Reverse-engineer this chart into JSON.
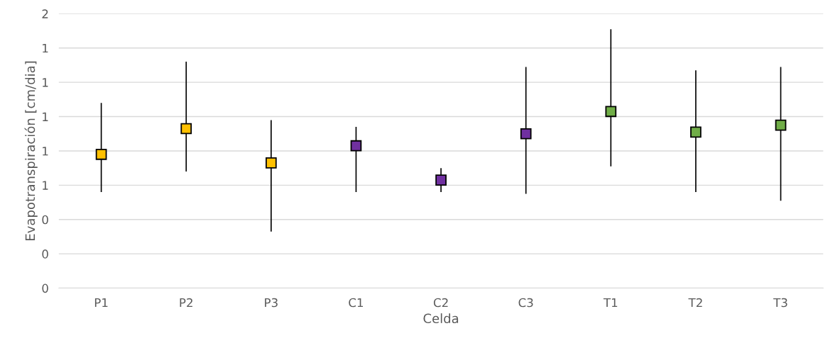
{
  "chart_data": {
    "type": "scatter",
    "xlabel": "Celda",
    "ylabel": "Evapotranspiración [cm/dia]",
    "categories": [
      "P1",
      "P2",
      "P3",
      "C1",
      "C2",
      "C3",
      "T1",
      "T2",
      "T3"
    ],
    "values": [
      0.78,
      0.93,
      0.73,
      0.83,
      0.63,
      0.9,
      1.03,
      0.91,
      0.95
    ],
    "errors": [
      [
        0.56,
        1.08
      ],
      [
        0.68,
        1.32
      ],
      [
        0.33,
        0.98
      ],
      [
        0.56,
        0.94
      ],
      [
        0.56,
        0.7
      ],
      [
        0.55,
        1.29
      ],
      [
        0.71,
        1.51
      ],
      [
        0.56,
        1.27
      ],
      [
        0.51,
        1.29
      ]
    ],
    "colors": [
      "#ffc000",
      "#ffc000",
      "#ffc000",
      "#7030a0",
      "#7030a0",
      "#7030a0",
      "#70ad47",
      "#70ad47",
      "#70ad47"
    ],
    "marker": "square",
    "ylim": [
      0,
      1.6
    ],
    "yticks": [
      {
        "value": 0,
        "label": "0"
      },
      {
        "value": 0.2,
        "label": "0"
      },
      {
        "value": 0.4,
        "label": "0"
      },
      {
        "value": 0.6,
        "label": "1"
      },
      {
        "value": 0.8,
        "label": "1"
      },
      {
        "value": 1.0,
        "label": "1"
      },
      {
        "value": 1.2,
        "label": "1"
      },
      {
        "value": 1.4,
        "label": "1"
      },
      {
        "value": 1.6,
        "label": "2"
      }
    ],
    "grid": "y"
  }
}
